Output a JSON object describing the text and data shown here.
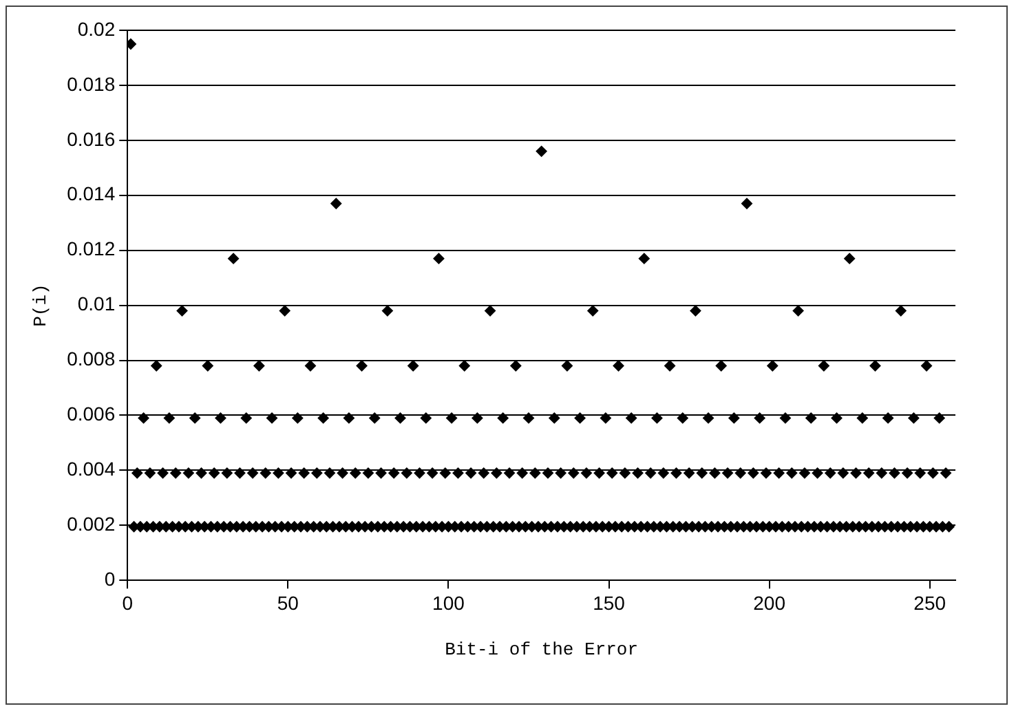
{
  "chart_data": {
    "type": "scatter",
    "xlabel": "Bit-i of the Error",
    "ylabel": "P(i)",
    "x": [
      1,
      2,
      3,
      4,
      5,
      6,
      7,
      8,
      9,
      10,
      11,
      12,
      13,
      14,
      15,
      16,
      17,
      18,
      19,
      20,
      21,
      22,
      23,
      24,
      25,
      26,
      27,
      28,
      29,
      30,
      31,
      32,
      33,
      34,
      35,
      36,
      37,
      38,
      39,
      40,
      41,
      42,
      43,
      44,
      45,
      46,
      47,
      48,
      49,
      50,
      51,
      52,
      53,
      54,
      55,
      56,
      57,
      58,
      59,
      60,
      61,
      62,
      63,
      64,
      65,
      66,
      67,
      68,
      69,
      70,
      71,
      72,
      73,
      74,
      75,
      76,
      77,
      78,
      79,
      80,
      81,
      82,
      83,
      84,
      85,
      86,
      87,
      88,
      89,
      90,
      91,
      92,
      93,
      94,
      95,
      96,
      97,
      98,
      99,
      100,
      101,
      102,
      103,
      104,
      105,
      106,
      107,
      108,
      109,
      110,
      111,
      112,
      113,
      114,
      115,
      116,
      117,
      118,
      119,
      120,
      121,
      122,
      123,
      124,
      125,
      126,
      127,
      128,
      129,
      130,
      131,
      132,
      133,
      134,
      135,
      136,
      137,
      138,
      139,
      140,
      141,
      142,
      143,
      144,
      145,
      146,
      147,
      148,
      149,
      150,
      151,
      152,
      153,
      154,
      155,
      156,
      157,
      158,
      159,
      160,
      161,
      162,
      163,
      164,
      165,
      166,
      167,
      168,
      169,
      170,
      171,
      172,
      173,
      174,
      175,
      176,
      177,
      178,
      179,
      180,
      181,
      182,
      183,
      184,
      185,
      186,
      187,
      188,
      189,
      190,
      191,
      192,
      193,
      194,
      195,
      196,
      197,
      198,
      199,
      200,
      201,
      202,
      203,
      204,
      205,
      206,
      207,
      208,
      209,
      210,
      211,
      212,
      213,
      214,
      215,
      216,
      217,
      218,
      219,
      220,
      221,
      222,
      223,
      224,
      225,
      226,
      227,
      228,
      229,
      230,
      231,
      232,
      233,
      234,
      235,
      236,
      237,
      238,
      239,
      240,
      241,
      242,
      243,
      244,
      245,
      246,
      247,
      248,
      249,
      250,
      251,
      252,
      253,
      254,
      255,
      256
    ],
    "values": [
      0.0195,
      0.00195,
      0.0039,
      0.00195,
      0.0059,
      0.00195,
      0.0039,
      0.00195,
      0.0078,
      0.00195,
      0.0039,
      0.00195,
      0.0059,
      0.00195,
      0.0039,
      0.00195,
      0.0098,
      0.00195,
      0.0039,
      0.00195,
      0.0059,
      0.00195,
      0.0039,
      0.00195,
      0.0078,
      0.00195,
      0.0039,
      0.00195,
      0.0059,
      0.00195,
      0.0039,
      0.00195,
      0.0117,
      0.00195,
      0.0039,
      0.00195,
      0.0059,
      0.00195,
      0.0039,
      0.00195,
      0.0078,
      0.00195,
      0.0039,
      0.00195,
      0.0059,
      0.00195,
      0.0039,
      0.00195,
      0.0098,
      0.00195,
      0.0039,
      0.00195,
      0.0059,
      0.00195,
      0.0039,
      0.00195,
      0.0078,
      0.00195,
      0.0039,
      0.00195,
      0.0059,
      0.00195,
      0.0039,
      0.00195,
      0.0137,
      0.00195,
      0.0039,
      0.00195,
      0.0059,
      0.00195,
      0.0039,
      0.00195,
      0.0078,
      0.00195,
      0.0039,
      0.00195,
      0.0059,
      0.00195,
      0.0039,
      0.00195,
      0.0098,
      0.00195,
      0.0039,
      0.00195,
      0.0059,
      0.00195,
      0.0039,
      0.00195,
      0.0078,
      0.00195,
      0.0039,
      0.00195,
      0.0059,
      0.00195,
      0.0039,
      0.00195,
      0.0117,
      0.00195,
      0.0039,
      0.00195,
      0.0059,
      0.00195,
      0.0039,
      0.00195,
      0.0078,
      0.00195,
      0.0039,
      0.00195,
      0.0059,
      0.00195,
      0.0039,
      0.00195,
      0.0098,
      0.00195,
      0.0039,
      0.00195,
      0.0059,
      0.00195,
      0.0039,
      0.00195,
      0.0078,
      0.00195,
      0.0039,
      0.00195,
      0.0059,
      0.00195,
      0.0039,
      0.00195,
      0.0156,
      0.00195,
      0.0039,
      0.00195,
      0.0059,
      0.00195,
      0.0039,
      0.00195,
      0.0078,
      0.00195,
      0.0039,
      0.00195,
      0.0059,
      0.00195,
      0.0039,
      0.00195,
      0.0098,
      0.00195,
      0.0039,
      0.00195,
      0.0059,
      0.00195,
      0.0039,
      0.00195,
      0.0078,
      0.00195,
      0.0039,
      0.00195,
      0.0059,
      0.00195,
      0.0039,
      0.00195,
      0.0117,
      0.00195,
      0.0039,
      0.00195,
      0.0059,
      0.00195,
      0.0039,
      0.00195,
      0.0078,
      0.00195,
      0.0039,
      0.00195,
      0.0059,
      0.00195,
      0.0039,
      0.00195,
      0.0098,
      0.00195,
      0.0039,
      0.00195,
      0.0059,
      0.00195,
      0.0039,
      0.00195,
      0.0078,
      0.00195,
      0.0039,
      0.00195,
      0.0059,
      0.00195,
      0.0039,
      0.00195,
      0.0137,
      0.00195,
      0.0039,
      0.00195,
      0.0059,
      0.00195,
      0.0039,
      0.00195,
      0.0078,
      0.00195,
      0.0039,
      0.00195,
      0.0059,
      0.00195,
      0.0039,
      0.00195,
      0.0098,
      0.00195,
      0.0039,
      0.00195,
      0.0059,
      0.00195,
      0.0039,
      0.00195,
      0.0078,
      0.00195,
      0.0039,
      0.00195,
      0.0059,
      0.00195,
      0.0039,
      0.00195,
      0.0117,
      0.00195,
      0.0039,
      0.00195,
      0.0059,
      0.00195,
      0.0039,
      0.00195,
      0.0078,
      0.00195,
      0.0039,
      0.00195,
      0.0059,
      0.00195,
      0.0039,
      0.00195,
      0.0098,
      0.00195,
      0.0039,
      0.00195,
      0.0059,
      0.00195,
      0.0039,
      0.00195,
      0.0078,
      0.00195,
      0.0039,
      0.00195,
      0.0059,
      0.00195,
      0.0039,
      0.00195
    ],
    "color": "#000000",
    "marker": "diamond",
    "grid": "y",
    "legend": false,
    "xlim": [
      0,
      258
    ],
    "xticks": [
      0,
      50,
      100,
      150,
      200,
      250
    ],
    "ylim": [
      0,
      0.02
    ],
    "yticks": [
      0,
      0.002,
      0.004,
      0.006,
      0.008,
      0.01,
      0.012,
      0.014,
      0.016,
      0.018,
      0.02
    ]
  }
}
